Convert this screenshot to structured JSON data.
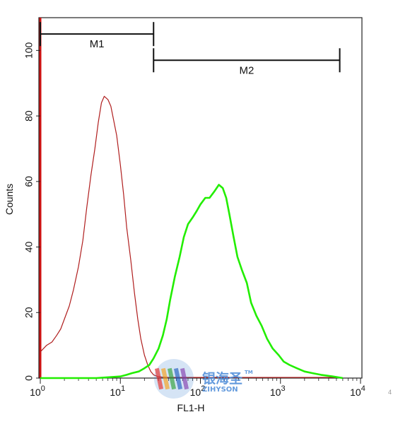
{
  "chart_data": {
    "type": "histogram",
    "xlabel": "FL1-H",
    "ylabel": "Counts",
    "xscale": "log",
    "xlim": [
      1,
      10000
    ],
    "ylim": [
      0,
      110
    ],
    "y_ticks": [
      0,
      20,
      40,
      60,
      80,
      100
    ],
    "x_ticks": [
      {
        "value": 1,
        "base": "10",
        "exp": "0"
      },
      {
        "value": 10,
        "base": "10",
        "exp": "1"
      },
      {
        "value": 100,
        "base": "10",
        "exp": "2"
      },
      {
        "value": 1000,
        "base": "10",
        "exp": "3"
      },
      {
        "value": 10000,
        "base": "10",
        "exp": "4"
      }
    ],
    "markers": [
      {
        "label": "M1",
        "x_start": 1,
        "x_end": 26,
        "y": 105
      },
      {
        "label": "M2",
        "x_start": 26,
        "x_end": 5500,
        "y": 97
      }
    ],
    "series": [
      {
        "color": "#b01e1e",
        "x": [
          1.0,
          1.2,
          1.4,
          1.6,
          1.8,
          2.0,
          2.3,
          2.6,
          3.0,
          3.4,
          3.8,
          4.3,
          4.8,
          5.3,
          5.8,
          6.3,
          7.0,
          7.6,
          8.2,
          9.0,
          10.0,
          11.0,
          12.0,
          13.5,
          15.0,
          16.5,
          18.0,
          20.0,
          22.0,
          24.0,
          26.0,
          29.0,
          33.0,
          40.0,
          60.0,
          100.0,
          200.0,
          500.0,
          1000.0,
          2000.0,
          5000.0
        ],
        "y": [
          8,
          10,
          11,
          13,
          15,
          18,
          22,
          27,
          34,
          42,
          52,
          62,
          70,
          78,
          84,
          86,
          85,
          83,
          79,
          74,
          65,
          56,
          46,
          36,
          26,
          18,
          12,
          7,
          4,
          2,
          1,
          0.5,
          0.3,
          0.2,
          0.2,
          0.2,
          0.2,
          0.2,
          0.2,
          0.2,
          0.2
        ]
      },
      {
        "color": "#22ee00",
        "x": [
          1,
          5,
          10,
          12,
          14,
          17,
          20,
          23,
          26,
          30,
          34,
          38,
          42,
          48,
          55,
          62,
          70,
          80,
          90,
          100,
          115,
          130,
          150,
          170,
          190,
          210,
          230,
          260,
          290,
          330,
          380,
          430,
          500,
          580,
          680,
          800,
          950,
          1100,
          1300,
          1600,
          2000,
          2500,
          3200,
          4500,
          6000
        ],
        "y": [
          0,
          0,
          0.5,
          1,
          1.5,
          2,
          3,
          4,
          6,
          9,
          13,
          18,
          24,
          31,
          37,
          43,
          47,
          49,
          51,
          53,
          55,
          55,
          57,
          59,
          58,
          55,
          50,
          43,
          37,
          33,
          29,
          23,
          19,
          16,
          12,
          9,
          7,
          5,
          4,
          3,
          2,
          1.5,
          1,
          0.5,
          0
        ]
      }
    ]
  },
  "watermark": {
    "cn_text": "银海圣",
    "en_text": "ZIHYSON",
    "tm": "TM"
  },
  "right_note": "4"
}
